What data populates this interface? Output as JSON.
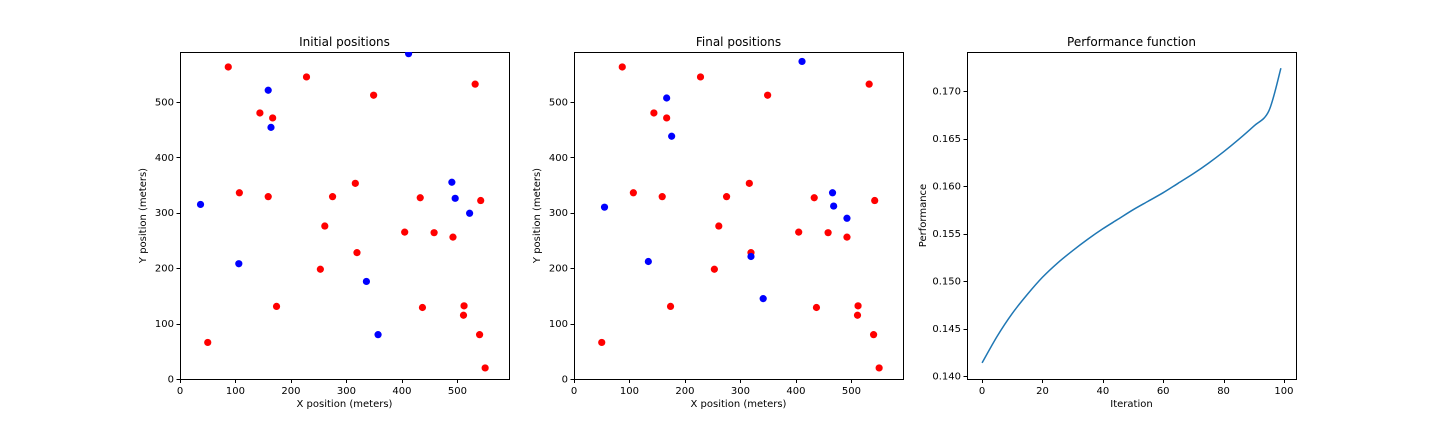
{
  "chart_data": [
    {
      "type": "scatter",
      "title": "Initial positions",
      "xlabel": "X position (meters)",
      "ylabel": "Y position (meters)",
      "xlim": [
        0,
        593
      ],
      "ylim": [
        0,
        590
      ],
      "xticks": [
        0,
        100,
        200,
        300,
        400,
        500
      ],
      "yticks": [
        0,
        100,
        200,
        300,
        400,
        500
      ],
      "grid": false,
      "series": [
        {
          "color": "#ff0000",
          "points": [
            [
              87,
              563
            ],
            [
              228,
              545
            ],
            [
              532,
              532
            ],
            [
              349,
              512
            ],
            [
              144,
              480
            ],
            [
              167,
              471
            ],
            [
              316,
              353
            ],
            [
              107,
              336
            ],
            [
              159,
              329
            ],
            [
              275,
              329
            ],
            [
              433,
              327
            ],
            [
              542,
              322
            ],
            [
              261,
              276
            ],
            [
              405,
              265
            ],
            [
              458,
              264
            ],
            [
              492,
              256
            ],
            [
              319,
              228
            ],
            [
              253,
              198
            ],
            [
              174,
              131
            ],
            [
              512,
              132
            ],
            [
              437,
              129
            ],
            [
              511,
              115
            ],
            [
              540,
              80
            ],
            [
              50,
              66
            ],
            [
              550,
              20
            ]
          ]
        },
        {
          "color": "#0000ff",
          "points": [
            [
              412,
              587
            ],
            [
              159,
              521
            ],
            [
              164,
              454
            ],
            [
              490,
              355
            ],
            [
              496,
              326
            ],
            [
              37,
              315
            ],
            [
              522,
              299
            ],
            [
              106,
              208
            ],
            [
              336,
              176
            ],
            [
              357,
              80
            ]
          ]
        }
      ]
    },
    {
      "type": "scatter",
      "title": "Final positions",
      "xlabel": "X position (meters)",
      "ylabel": "Y position (meters)",
      "xlim": [
        0,
        593
      ],
      "ylim": [
        0,
        590
      ],
      "xticks": [
        0,
        100,
        200,
        300,
        400,
        500
      ],
      "yticks": [
        0,
        100,
        200,
        300,
        400,
        500
      ],
      "grid": false,
      "series": [
        {
          "color": "#ff0000",
          "points": [
            [
              87,
              563
            ],
            [
              228,
              545
            ],
            [
              532,
              532
            ],
            [
              349,
              512
            ],
            [
              144,
              480
            ],
            [
              167,
              471
            ],
            [
              316,
              353
            ],
            [
              107,
              336
            ],
            [
              159,
              329
            ],
            [
              275,
              329
            ],
            [
              433,
              327
            ],
            [
              542,
              322
            ],
            [
              261,
              276
            ],
            [
              405,
              265
            ],
            [
              458,
              264
            ],
            [
              492,
              256
            ],
            [
              319,
              228
            ],
            [
              253,
              198
            ],
            [
              174,
              131
            ],
            [
              512,
              132
            ],
            [
              437,
              129
            ],
            [
              511,
              115
            ],
            [
              540,
              80
            ],
            [
              50,
              66
            ],
            [
              550,
              20
            ]
          ]
        },
        {
          "color": "#0000ff",
          "points": [
            [
              411,
              573
            ],
            [
              167,
              507
            ],
            [
              176,
              438
            ],
            [
              466,
              336
            ],
            [
              468,
              312
            ],
            [
              55,
              310
            ],
            [
              492,
              290
            ],
            [
              134,
              212
            ],
            [
              319,
              221
            ],
            [
              341,
              145
            ]
          ]
        }
      ]
    },
    {
      "type": "line",
      "title": "Performance function",
      "xlabel": "Iteration",
      "ylabel": "Performance",
      "xlim": [
        -5,
        104
      ],
      "ylim": [
        0.1397,
        0.1741
      ],
      "xticks": [
        0,
        20,
        40,
        60,
        80,
        100
      ],
      "yticks": [
        0.14,
        0.145,
        0.15,
        0.155,
        0.16,
        0.165,
        0.17
      ],
      "ytick_decimals": 3,
      "grid": false,
      "series": [
        {
          "color": "#1f77b4",
          "x": [
            0,
            5,
            10,
            15,
            20,
            25,
            30,
            35,
            40,
            45,
            50,
            55,
            60,
            65,
            70,
            75,
            80,
            85,
            90,
            95,
            99
          ],
          "y": [
            0.1414,
            0.1442,
            0.1466,
            0.1486,
            0.1504,
            0.1519,
            0.1532,
            0.1544,
            0.1555,
            0.1565,
            0.1575,
            0.1584,
            0.1593,
            0.1603,
            0.1613,
            0.1624,
            0.1636,
            0.1649,
            0.1663,
            0.1679,
            0.1724
          ]
        }
      ]
    }
  ]
}
